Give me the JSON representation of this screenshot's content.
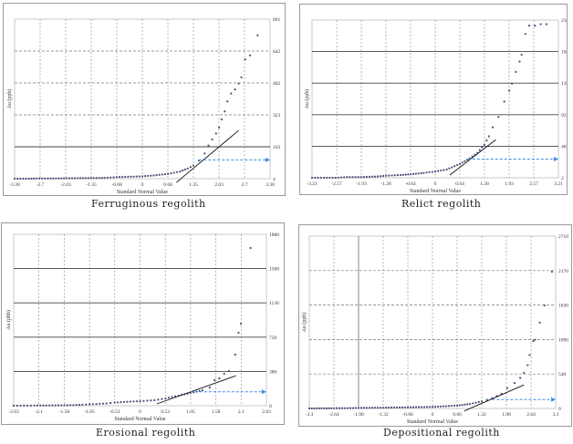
{
  "chart_data": [
    {
      "type": "scatter",
      "title": "Ferruginous regolith",
      "xlabel": "Standard Normal Value",
      "ylabel": "Au (ppb)",
      "xticks": [
        "-3.38",
        "-2.7",
        "-2.03",
        "-1.35",
        "-0.68",
        "0",
        "0.68",
        "1.35",
        "2.03",
        "2.7",
        "3.38"
      ],
      "xlim": [
        -3.38,
        3.38
      ],
      "yticks": [
        "4",
        "163",
        "323",
        "482",
        "642",
        "801"
      ],
      "ylim": [
        4,
        801
      ],
      "points": [
        [
          -3.38,
          4
        ],
        [
          -3.0,
          4
        ],
        [
          -2.8,
          5
        ],
        [
          -2.5,
          5
        ],
        [
          -2.0,
          6
        ],
        [
          -1.5,
          7
        ],
        [
          -1.0,
          8
        ],
        [
          -0.68,
          12
        ],
        [
          -0.3,
          14
        ],
        [
          0,
          16
        ],
        [
          0.3,
          20
        ],
        [
          0.68,
          28
        ],
        [
          1.0,
          40
        ],
        [
          1.2,
          55
        ],
        [
          1.35,
          70
        ],
        [
          1.5,
          95
        ],
        [
          1.65,
          130
        ],
        [
          1.75,
          170
        ],
        [
          1.85,
          200
        ],
        [
          1.95,
          230
        ],
        [
          2.03,
          260
        ],
        [
          2.1,
          300
        ],
        [
          2.18,
          340
        ],
        [
          2.25,
          390
        ],
        [
          2.35,
          430
        ],
        [
          2.45,
          450
        ],
        [
          2.55,
          480
        ],
        [
          2.62,
          510
        ],
        [
          2.72,
          600
        ],
        [
          2.85,
          620
        ],
        [
          3.05,
          720
        ]
      ],
      "fit_line": [
        [
          0.9,
          -15
        ],
        [
          2.55,
          245
        ]
      ],
      "threshold": {
        "z": 1.5,
        "value": 98
      }
    },
    {
      "type": "scatter",
      "title": "Relict regolith",
      "xlabel": "Standard Normal Value",
      "ylabel": "Au (ppb)",
      "xticks": [
        "-3.21",
        "-2.57",
        "-1.93",
        "-1.28",
        "-0.64",
        "0",
        "0.64",
        "1.28",
        "1.93",
        "2.57",
        "3.21"
      ],
      "xlim": [
        -3.21,
        3.21
      ],
      "yticks": [
        "2",
        "48",
        "93",
        "139",
        "184",
        "230"
      ],
      "ylim": [
        2,
        230
      ],
      "points": [
        [
          -3.21,
          2
        ],
        [
          -2.9,
          2
        ],
        [
          -2.6,
          2
        ],
        [
          -2.3,
          3
        ],
        [
          -1.93,
          3
        ],
        [
          -1.5,
          4
        ],
        [
          -1.28,
          5
        ],
        [
          -0.9,
          6
        ],
        [
          -0.64,
          7
        ],
        [
          -0.3,
          9
        ],
        [
          0,
          11
        ],
        [
          0.3,
          14
        ],
        [
          0.64,
          22
        ],
        [
          0.9,
          30
        ],
        [
          1.1,
          38
        ],
        [
          1.28,
          50
        ],
        [
          1.4,
          62
        ],
        [
          1.5,
          75
        ],
        [
          1.65,
          90
        ],
        [
          1.8,
          112
        ],
        [
          1.93,
          128
        ],
        [
          2.0,
          138
        ],
        [
          2.1,
          155
        ],
        [
          2.2,
          170
        ],
        [
          2.25,
          180
        ],
        [
          2.35,
          210
        ],
        [
          2.45,
          222
        ],
        [
          2.6,
          222
        ],
        [
          2.75,
          224
        ],
        [
          2.9,
          224
        ]
      ],
      "fit_line": [
        [
          0.38,
          6
        ],
        [
          1.58,
          57
        ]
      ],
      "threshold": {
        "z": 0.85,
        "value": 29
      }
    },
    {
      "type": "scatter",
      "title": "Erosional regolith",
      "xlabel": "Standard Normal Value",
      "ylabel": "Au (pbb)",
      "xticks": [
        "-2.63",
        "-2.1",
        "-1.58",
        "-1.05",
        "-0.53",
        "0",
        "0.53",
        "1.05",
        "1.58",
        "2.1",
        "2.63"
      ],
      "xlim": [
        -2.63,
        2.63
      ],
      "yticks": [
        "0",
        "380",
        "750",
        "1130",
        "1500",
        "1880"
      ],
      "ylim": [
        0,
        1880
      ],
      "points": [
        [
          -2.63,
          0
        ],
        [
          -2.2,
          2
        ],
        [
          -1.95,
          3
        ],
        [
          -1.7,
          4
        ],
        [
          -1.45,
          6
        ],
        [
          -1.2,
          10
        ],
        [
          -1.05,
          15
        ],
        [
          -0.7,
          25
        ],
        [
          -0.53,
          35
        ],
        [
          -0.2,
          45
        ],
        [
          0,
          50
        ],
        [
          0.3,
          60
        ],
        [
          0.53,
          80
        ],
        [
          0.8,
          110
        ],
        [
          1.05,
          140
        ],
        [
          1.3,
          170
        ],
        [
          1.45,
          200
        ],
        [
          1.55,
          280
        ],
        [
          1.65,
          300
        ],
        [
          1.75,
          350
        ],
        [
          1.85,
          380
        ],
        [
          1.98,
          560
        ],
        [
          2.05,
          800
        ],
        [
          2.1,
          900
        ],
        [
          2.3,
          1730
        ]
      ],
      "fit_line": [
        [
          0.35,
          20
        ],
        [
          2.0,
          330
        ]
      ],
      "threshold": {
        "z": 1.05,
        "value": 153
      }
    },
    {
      "type": "scatter",
      "title": "Depositional regolith",
      "xlabel": "Standard Normal Value",
      "ylabel": "Au (ppb)",
      "xticks": [
        "-3.3",
        "-2.64",
        "-1.98",
        "-1.32",
        "-0.66",
        "0",
        "0.66",
        "1.32",
        "1.98",
        "2.64",
        "3.3"
      ],
      "xlim": [
        -3.3,
        3.3
      ],
      "yticks": [
        "0",
        "540",
        "1090",
        "1630",
        "2170",
        "2710"
      ],
      "ylim": [
        0,
        2710
      ],
      "points": [
        [
          -3.3,
          0
        ],
        [
          -2.9,
          2
        ],
        [
          -2.64,
          3
        ],
        [
          -2.2,
          5
        ],
        [
          -1.98,
          8
        ],
        [
          -1.32,
          12
        ],
        [
          -0.66,
          18
        ],
        [
          0,
          25
        ],
        [
          0.66,
          45
        ],
        [
          1.0,
          70
        ],
        [
          1.32,
          110
        ],
        [
          1.6,
          160
        ],
        [
          1.85,
          230
        ],
        [
          2.0,
          320
        ],
        [
          2.2,
          400
        ],
        [
          2.35,
          480
        ],
        [
          2.45,
          560
        ],
        [
          2.55,
          680
        ],
        [
          2.6,
          840
        ],
        [
          2.7,
          1060
        ],
        [
          2.75,
          1080
        ],
        [
          3.0,
          1620
        ],
        [
          3.2,
          2150
        ]
      ],
      "fit_line": [
        [
          0.85,
          -40
        ],
        [
          2.45,
          370
        ]
      ],
      "threshold": {
        "z": 1.6,
        "value": 139
      }
    }
  ]
}
